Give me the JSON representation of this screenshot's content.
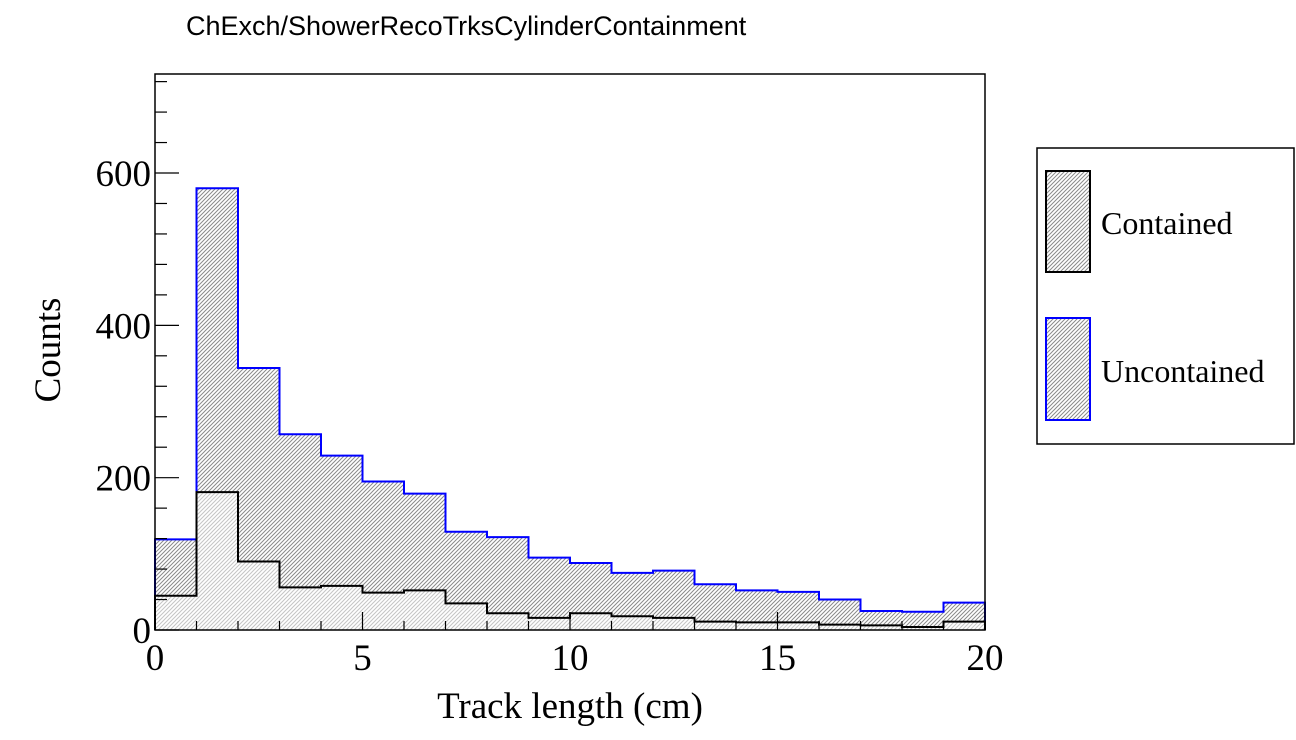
{
  "chart_data": {
    "type": "histogram",
    "title": "ChExch/ShowerRecoTrksCylinderContainment",
    "xlabel": "Track length (cm)",
    "ylabel": "Counts",
    "xlim": [
      0,
      20
    ],
    "ylim": [
      0,
      730
    ],
    "x_ticks": [
      0,
      5,
      10,
      15,
      20
    ],
    "y_ticks": [
      0,
      200,
      400,
      600
    ],
    "grid": false,
    "stacked": true,
    "bin_edges": [
      0,
      1,
      2,
      3,
      4,
      5,
      6,
      7,
      8,
      9,
      10,
      11,
      12,
      13,
      14,
      15,
      16,
      17,
      18,
      19,
      20
    ],
    "legend_position": "right",
    "series": [
      {
        "name": "Contained",
        "color": "#000000",
        "values": [
          45,
          181,
          90,
          56,
          58,
          49,
          52,
          35,
          22,
          16,
          22,
          18,
          16,
          11,
          10,
          10,
          7,
          6,
          4,
          11
        ]
      },
      {
        "name": "Uncontained",
        "color": "#0000ff",
        "stack_totals": [
          119,
          580,
          344,
          257,
          229,
          195,
          179,
          129,
          122,
          95,
          88,
          75,
          78,
          60,
          52,
          50,
          40,
          25,
          24,
          36
        ]
      }
    ]
  }
}
